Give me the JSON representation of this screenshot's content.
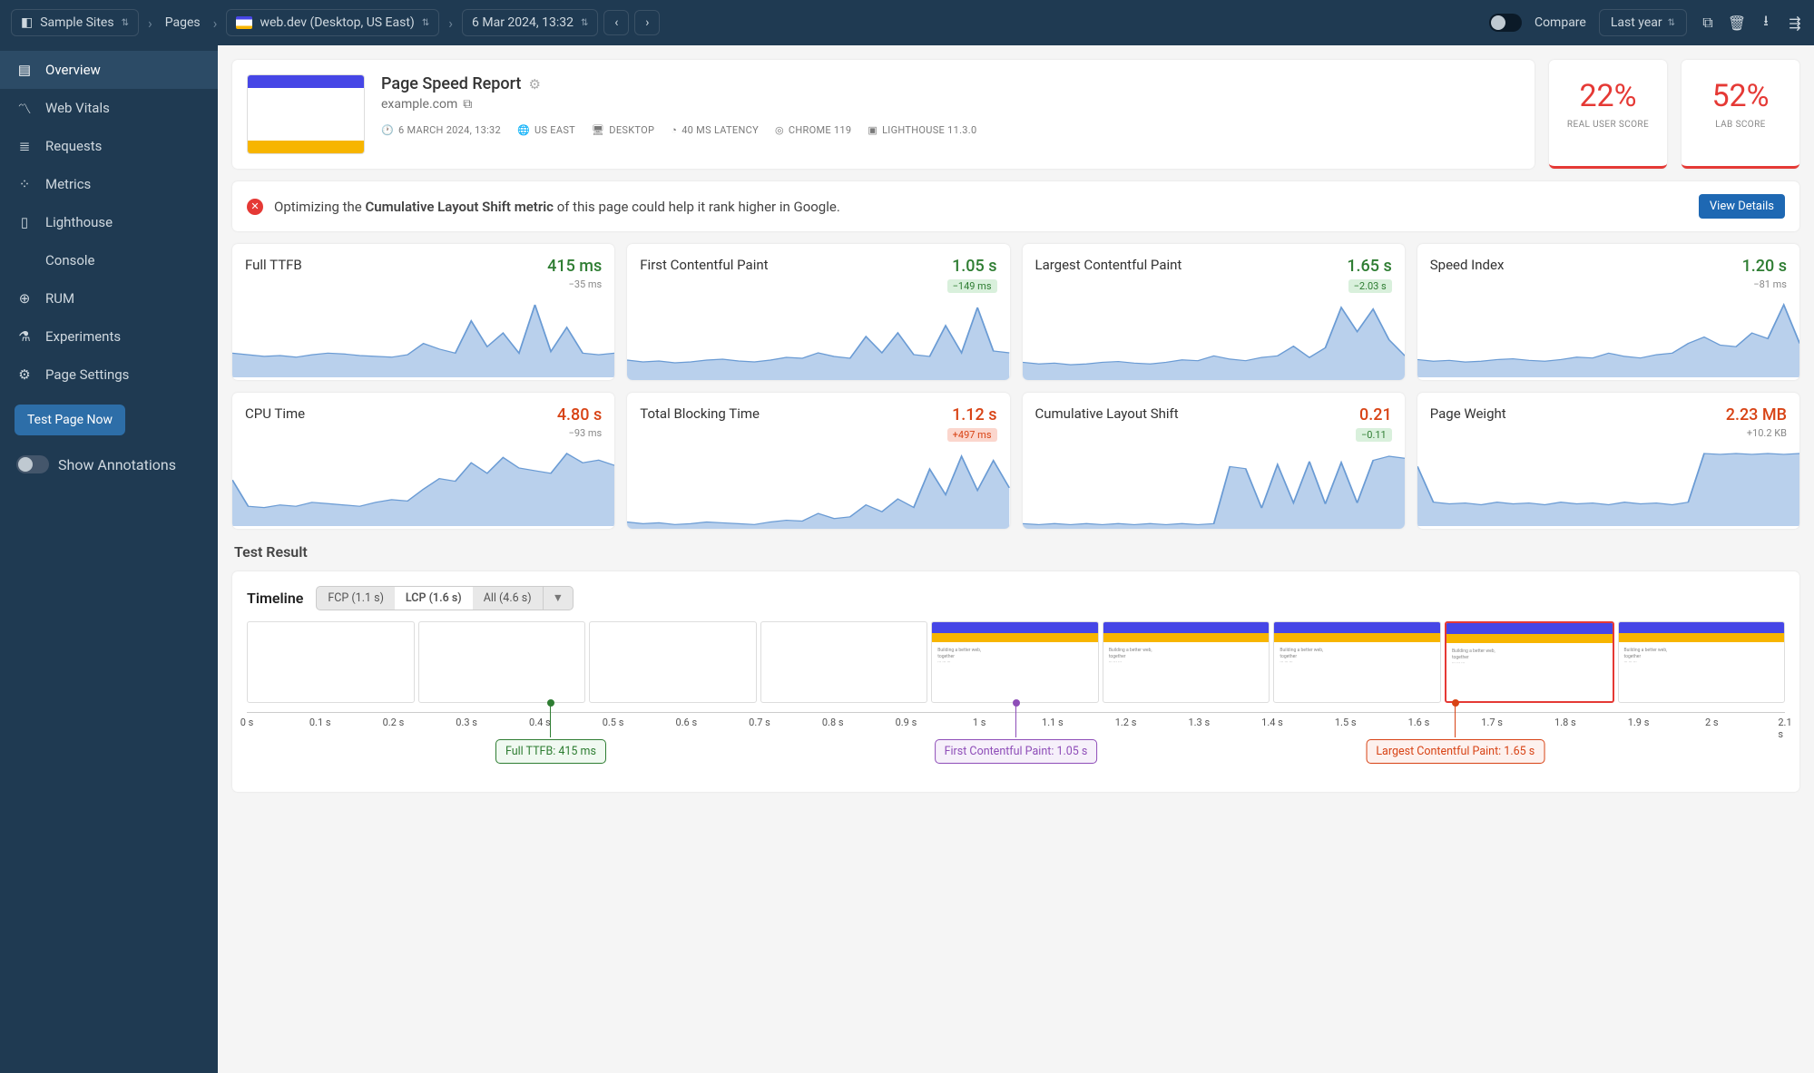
{
  "colors": {
    "topbar_bg": "#1f3a52",
    "accent_blue": "#1e68b3",
    "spark_fill": "#b9d0ec",
    "spark_stroke": "#6a9bd4",
    "good": "#2e7d32",
    "bad": "#d84315",
    "score_red": "#e53935",
    "marker_purple": "#8e4db8"
  },
  "breadcrumb": {
    "site": "Sample Sites",
    "pages": "Pages",
    "page": "web.dev (Desktop, US East)",
    "test": "6 Mar 2024, 13:32"
  },
  "topbar": {
    "compare": "Compare",
    "range": "Last year"
  },
  "sidebar": {
    "items": [
      {
        "label": "Overview",
        "active": true
      },
      {
        "label": "Web Vitals",
        "active": false
      },
      {
        "label": "Requests",
        "active": false
      },
      {
        "label": "Metrics",
        "active": false
      },
      {
        "label": "Lighthouse",
        "active": false
      },
      {
        "label": "Console",
        "active": false
      },
      {
        "label": "RUM",
        "active": false
      },
      {
        "label": "Experiments",
        "active": false
      },
      {
        "label": "Page Settings",
        "active": false
      }
    ],
    "test_now": "Test Page Now",
    "annotations": "Show Annotations"
  },
  "header": {
    "title": "Page Speed Report",
    "site": "example.com",
    "meta": {
      "date": "6 MARCH 2024, 13:32",
      "region": "US EAST",
      "device": "DESKTOP",
      "latency": "40 MS LATENCY",
      "browser": "CHROME 119",
      "lighthouse": "LIGHTHOUSE 11.3.0"
    }
  },
  "scores": [
    {
      "value": "22%",
      "label": "REAL USER SCORE"
    },
    {
      "value": "52%",
      "label": "LAB SCORE"
    }
  ],
  "banner": {
    "pre": "Optimizing the ",
    "bold": "Cumulative Layout Shift metric",
    "post": " of this page could help it rank higher in Google.",
    "button": "View Details"
  },
  "metrics": [
    {
      "title": "Full TTFB",
      "value": "415 ms",
      "value_color": "green",
      "delta": "−35 ms",
      "delta_style": "plain",
      "spark": [
        30,
        28,
        26,
        27,
        25,
        28,
        30,
        29,
        27,
        26,
        25,
        28,
        42,
        35,
        30,
        70,
        38,
        55,
        30,
        90,
        32,
        62,
        30,
        28,
        30
      ]
    },
    {
      "title": "First Contentful Paint",
      "value": "1.05 s",
      "value_color": "green",
      "delta": "−149 ms",
      "delta_style": "badge-green",
      "spark": [
        22,
        20,
        21,
        19,
        20,
        22,
        23,
        21,
        20,
        22,
        25,
        24,
        30,
        26,
        24,
        48,
        30,
        52,
        28,
        26,
        60,
        30,
        80,
        32,
        30
      ]
    },
    {
      "title": "Largest Contentful Paint",
      "value": "1.65 s",
      "value_color": "green",
      "delta": "−2.03 s",
      "delta_style": "badge-green",
      "spark": [
        22,
        20,
        21,
        19,
        20,
        22,
        23,
        21,
        20,
        22,
        25,
        24,
        30,
        26,
        24,
        28,
        30,
        42,
        28,
        40,
        90,
        60,
        88,
        50,
        30
      ]
    },
    {
      "title": "Speed Index",
      "value": "1.20 s",
      "value_color": "green",
      "delta": "−81 ms",
      "delta_style": "plain",
      "spark": [
        22,
        20,
        21,
        19,
        20,
        22,
        23,
        21,
        20,
        22,
        25,
        24,
        30,
        26,
        24,
        28,
        30,
        42,
        50,
        40,
        38,
        55,
        48,
        90,
        42
      ]
    },
    {
      "title": "CPU Time",
      "value": "4.80 s",
      "value_color": "red",
      "delta": "−93 ms",
      "delta_style": "plain",
      "spark": [
        35,
        15,
        14,
        16,
        15,
        18,
        17,
        16,
        15,
        18,
        20,
        19,
        28,
        36,
        34,
        48,
        40,
        52,
        44,
        42,
        40,
        55,
        48,
        50,
        46
      ]
    },
    {
      "title": "Total Blocking Time",
      "value": "1.12 s",
      "value_color": "red",
      "delta": "+497 ms",
      "delta_style": "badge-red",
      "spark": [
        8,
        6,
        7,
        5,
        6,
        8,
        7,
        6,
        5,
        8,
        10,
        9,
        18,
        12,
        14,
        28,
        20,
        35,
        25,
        70,
        40,
        85,
        45,
        80,
        48
      ]
    },
    {
      "title": "Cumulative Layout Shift",
      "value": "0.21",
      "value_color": "red",
      "delta": "−0.11",
      "delta_style": "badge-green",
      "spark": [
        5,
        4,
        5,
        4,
        5,
        4,
        5,
        4,
        5,
        4,
        5,
        4,
        5,
        60,
        58,
        20,
        62,
        25,
        65,
        24,
        64,
        25,
        66,
        70,
        68
      ]
    },
    {
      "title": "Page Weight",
      "value": "2.23 MB",
      "value_color": "red",
      "delta": "+10.2 KB",
      "delta_style": "plain",
      "spark": [
        70,
        28,
        26,
        27,
        25,
        28,
        26,
        27,
        25,
        28,
        26,
        27,
        25,
        28,
        26,
        27,
        25,
        28,
        85,
        84,
        85,
        84,
        85,
        84,
        85
      ]
    }
  ],
  "test_result_title": "Test Result",
  "timeline": {
    "title": "Timeline",
    "tabs": {
      "fcp": "FCP (1.1 s)",
      "lcp": "LCP (1.6 s)",
      "all": "All (4.6 s)"
    },
    "frames_loaded_from": 4,
    "frames_highlight": 7,
    "frames_total": 9,
    "axis": {
      "min": 0,
      "max": 2.1,
      "step": 0.1,
      "unit": "s"
    },
    "markers": [
      {
        "pos_s": 0.415,
        "color": "g",
        "label": "Full TTFB: 415 ms"
      },
      {
        "pos_s": 1.05,
        "color": "p",
        "label": "First Contentful Paint: 1.05 s"
      },
      {
        "pos_s": 1.65,
        "color": "r",
        "label": "Largest Contentful Paint: 1.65 s"
      }
    ]
  }
}
